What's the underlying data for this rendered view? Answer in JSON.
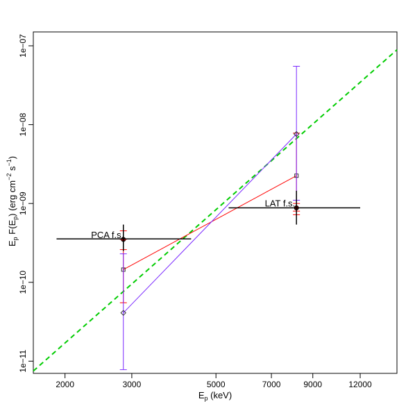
{
  "chart_data": {
    "type": "scatter",
    "log_x": true,
    "log_y": true,
    "xlim": [
      1650,
      15000
    ],
    "ylim": [
      7e-12,
      1.5e-07
    ],
    "xlabel": {
      "main": "E",
      "sub": "p",
      "tail": " (keV)"
    },
    "ylabel": "E_p F(E_p) (erg cm^-2 s^-1)",
    "xticks": [
      {
        "value": 2000,
        "label": "2000"
      },
      {
        "value": 3000,
        "label": "3000"
      },
      {
        "value": 5000,
        "label": "5000"
      },
      {
        "value": 7000,
        "label": "7000"
      },
      {
        "value": 9000,
        "label": "9000"
      },
      {
        "value": 12000,
        "label": "12000"
      }
    ],
    "yticks": [
      {
        "value": 1e-11,
        "label": "1e−11"
      },
      {
        "value": 1e-10,
        "label": "1e−10"
      },
      {
        "value": 1e-09,
        "label": "1e−09"
      },
      {
        "value": 1e-08,
        "label": "1e−08"
      },
      {
        "value": 1e-07,
        "label": "1e−07"
      }
    ],
    "grid": false,
    "legend": "none",
    "annotations": [
      {
        "text": "PCA f.s.",
        "x": 2880,
        "y": 3.5e-10
      },
      {
        "text": "LAT f.s.",
        "x": 8150,
        "y": 8.8e-10
      }
    ],
    "fit_line": {
      "color": "#00cc00",
      "x": [
        1650,
        15000
      ],
      "y": [
        7.5e-12,
        8.9e-08
      ]
    },
    "fixed_points": {
      "color": "#000000",
      "points": [
        {
          "x": 2850,
          "y": 3.55e-10,
          "xerr": [
            1900,
            4300
          ],
          "yerr": [
            2.5e-10,
            5.4e-10
          ]
        },
        {
          "x": 8150,
          "y": 8.8e-10,
          "xerr": [
            5400,
            12000
          ],
          "yerr": [
            5.4e-10,
            1.45e-09
          ]
        }
      ]
    },
    "series": [
      {
        "color": "#ff0000",
        "marker": "circle",
        "x": [
          2850,
          8150
        ],
        "y": [
          3.5e-10,
          8.8e-10
        ],
        "yerr_low": [
          2.6e-10,
          7.2e-10
        ],
        "yerr_high": [
          4.5e-10,
          1e-09
        ],
        "connect": false
      },
      {
        "color": "#ff0000",
        "marker": "square",
        "x": [
          2850,
          8150
        ],
        "y": [
          1.45e-10,
          2.25e-09
        ],
        "yerr_low": [
          5.5e-11,
          8e-10
        ],
        "yerr_high": [
          3.5e-10,
          7.8e-09
        ],
        "connect": true
      },
      {
        "color": "#7a28ff",
        "marker": "diamond",
        "x": [
          2850,
          8150
        ],
        "y": [
          4.1e-11,
          7.6e-09
        ],
        "yerr_low": [
          7.8e-12,
          1.1e-09
        ],
        "yerr_high": [
          2.3e-10,
          5.5e-08
        ],
        "connect": true
      }
    ]
  }
}
